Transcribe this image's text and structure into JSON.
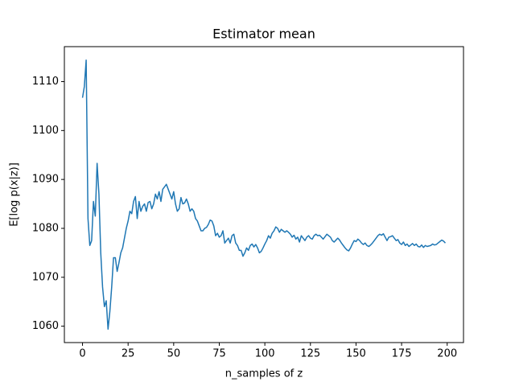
{
  "chart_data": {
    "type": "line",
    "title": "Estimator mean",
    "xlabel": "n_samples of z",
    "ylabel": "E[log p(x|z)]",
    "color": "#1f77b4",
    "xlim": [
      -9.95,
      208.95
    ],
    "ylim": [
      1056.65,
      1117.15
    ],
    "xticks": [
      0,
      25,
      50,
      75,
      100,
      125,
      150,
      175,
      200
    ],
    "yticks": [
      1060,
      1070,
      1080,
      1090,
      1100,
      1110
    ],
    "x": [
      0,
      1,
      2,
      3,
      4,
      5,
      6,
      7,
      8,
      9,
      10,
      11,
      12,
      13,
      14,
      15,
      16,
      17,
      18,
      19,
      20,
      21,
      22,
      23,
      24,
      25,
      26,
      27,
      28,
      29,
      30,
      31,
      32,
      33,
      34,
      35,
      36,
      37,
      38,
      39,
      40,
      41,
      42,
      43,
      44,
      45,
      46,
      47,
      48,
      49,
      50,
      51,
      52,
      53,
      54,
      55,
      56,
      57,
      58,
      59,
      60,
      61,
      62,
      63,
      64,
      65,
      66,
      67,
      68,
      69,
      70,
      71,
      72,
      73,
      74,
      75,
      76,
      77,
      78,
      79,
      80,
      81,
      82,
      83,
      84,
      85,
      86,
      87,
      88,
      89,
      90,
      91,
      92,
      93,
      94,
      95,
      96,
      97,
      98,
      99,
      100,
      101,
      102,
      103,
      104,
      105,
      106,
      107,
      108,
      109,
      110,
      111,
      112,
      113,
      114,
      115,
      116,
      117,
      118,
      119,
      120,
      121,
      122,
      123,
      124,
      125,
      126,
      127,
      128,
      129,
      130,
      131,
      132,
      133,
      134,
      135,
      136,
      137,
      138,
      139,
      140,
      141,
      142,
      143,
      144,
      145,
      146,
      147,
      148,
      149,
      150,
      151,
      152,
      153,
      154,
      155,
      156,
      157,
      158,
      159,
      160,
      161,
      162,
      163,
      164,
      165,
      166,
      167,
      168,
      169,
      170,
      171,
      172,
      173,
      174,
      175,
      176,
      177,
      178,
      179,
      180,
      181,
      182,
      183,
      184,
      185,
      186,
      187,
      188,
      189,
      190,
      191,
      192,
      193,
      194,
      195,
      196,
      197,
      198,
      199
    ],
    "values": [
      1106.7,
      1109,
      1114.4,
      1082,
      1076.5,
      1077.5,
      1085.5,
      1082.5,
      1093.3,
      1087,
      1075,
      1068,
      1064,
      1065.2,
      1059.4,
      1063,
      1068,
      1074,
      1074,
      1071.2,
      1073,
      1075,
      1076,
      1078,
      1080,
      1081.5,
      1083.5,
      1083,
      1085.5,
      1086.5,
      1082,
      1085.5,
      1083.5,
      1084.5,
      1085,
      1083.5,
      1085.3,
      1085.5,
      1084,
      1085,
      1087,
      1086,
      1087.5,
      1085.5,
      1088,
      1088.5,
      1089,
      1088,
      1087,
      1086,
      1087.5,
      1085,
      1083.5,
      1084,
      1086.3,
      1085,
      1085.2,
      1086,
      1085,
      1083.5,
      1084,
      1083.5,
      1082,
      1081.5,
      1080.5,
      1079.5,
      1079.5,
      1080,
      1080.2,
      1080.8,
      1081.7,
      1081.5,
      1080.5,
      1078.5,
      1079,
      1078.2,
      1078.5,
      1079.5,
      1077,
      1077.5,
      1078,
      1077,
      1078.5,
      1078.8,
      1077,
      1076.5,
      1075.5,
      1075.5,
      1074.3,
      1075,
      1076,
      1075.5,
      1076.5,
      1076.8,
      1076.2,
      1076.7,
      1076,
      1075,
      1075.3,
      1076,
      1076.8,
      1077.5,
      1078.5,
      1078,
      1079,
      1079.5,
      1080.3,
      1080,
      1079.2,
      1079.8,
      1079.5,
      1079.2,
      1079.5,
      1079.2,
      1078.8,
      1078.2,
      1078.6,
      1077.8,
      1078.2,
      1077.2,
      1078.5,
      1078,
      1077.5,
      1078.2,
      1078.5,
      1078,
      1077.8,
      1078.5,
      1078.8,
      1078.5,
      1078.6,
      1078.2,
      1077.8,
      1078.3,
      1078.8,
      1078.5,
      1078.2,
      1077.5,
      1077.2,
      1077.6,
      1078,
      1077.6,
      1077,
      1076.5,
      1076,
      1075.6,
      1075.4,
      1076,
      1076.8,
      1077.5,
      1077.3,
      1077.8,
      1077.5,
      1077,
      1076.7,
      1077,
      1076.5,
      1076.3,
      1076.6,
      1077,
      1077.5,
      1078,
      1078.5,
      1078.8,
      1078.6,
      1078.9,
      1078.2,
      1077.5,
      1078.2,
      1078.3,
      1078.5,
      1078,
      1077.5,
      1077.7,
      1077,
      1076.7,
      1077.2,
      1076.5,
      1076.8,
      1076.3,
      1076.6,
      1076.9,
      1076.5,
      1076.8,
      1076.3,
      1076.2,
      1076.6,
      1076.1,
      1076.5,
      1076.3,
      1076.4,
      1076.5,
      1076.8,
      1076.6,
      1076.7,
      1077,
      1077.3,
      1077.6,
      1077.4,
      1077
    ]
  }
}
